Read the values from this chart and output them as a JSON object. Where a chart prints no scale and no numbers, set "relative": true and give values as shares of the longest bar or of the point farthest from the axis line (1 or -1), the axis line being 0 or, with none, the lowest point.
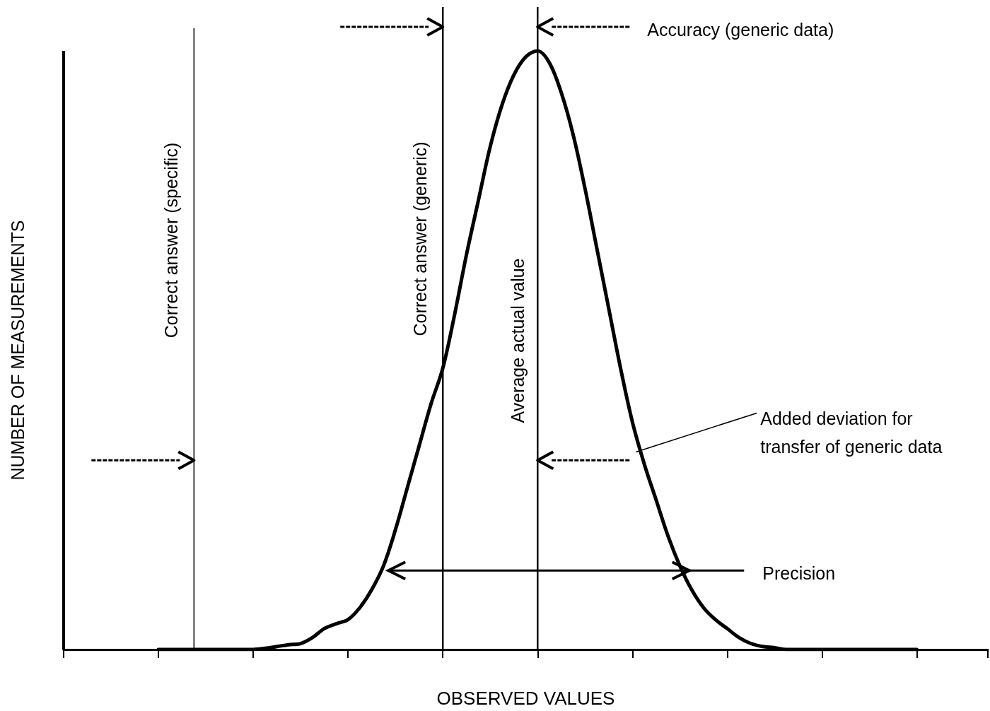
{
  "chart_data": {
    "type": "line",
    "relative": true,
    "xlabel": "OBSERVED VALUES",
    "ylabel": "NUMBER OF MEASUREMENTS",
    "marker": "none",
    "categories": [
      null,
      null,
      null,
      null,
      null,
      null,
      null,
      null,
      null,
      null,
      null,
      null,
      null,
      null,
      null,
      null,
      null,
      null,
      null,
      null,
      null,
      null,
      null,
      null,
      null,
      null,
      null,
      null,
      null,
      null,
      null,
      null,
      null,
      null,
      null,
      null,
      null,
      null,
      null,
      null,
      null,
      null,
      null,
      null,
      null,
      null,
      null,
      null,
      null,
      null,
      null,
      null,
      null,
      null,
      null,
      null,
      null,
      null,
      null,
      null,
      null,
      null,
      null,
      null,
      null,
      null,
      null,
      null,
      null,
      null,
      null,
      null,
      null,
      null,
      null,
      null,
      null,
      null,
      null
    ],
    "series": [
      {
        "color": "#000000",
        "values": [
          null,
          null,
          null,
          null,
          null,
          null,
          null,
          null,
          0,
          0,
          0,
          0,
          0,
          0,
          0,
          0,
          0,
          0.002,
          0.005,
          0.008,
          0.01,
          0.02,
          0.035,
          0.043,
          0.05,
          0.07,
          0.1,
          0.14,
          0.2,
          0.27,
          0.34,
          0.41,
          0.47,
          0.56,
          0.66,
          0.75,
          0.84,
          0.91,
          0.96,
          0.99,
          1,
          0.98,
          0.93,
          0.86,
          0.77,
          0.67,
          0.57,
          0.47,
          0.38,
          0.31,
          0.25,
          0.19,
          0.14,
          0.1,
          0.07,
          0.05,
          0.035,
          0.02,
          0.01,
          0.005,
          0.003,
          0,
          0,
          0,
          0,
          0,
          0,
          0,
          0,
          0,
          0,
          0,
          0,
          null,
          null,
          null,
          null,
          null,
          null
        ]
      }
    ],
    "annotations": [
      "Correct answer (specific)",
      "Correct answer (generic)",
      "Average actual value",
      "Accuracy (generic data)",
      "Added deviation for\ntransfer of generic data",
      "Precision"
    ]
  }
}
